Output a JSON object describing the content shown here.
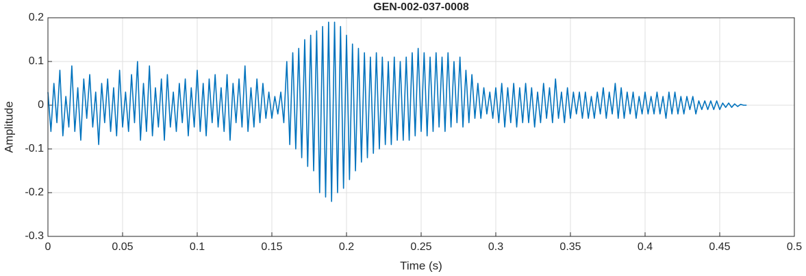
{
  "chart_data": {
    "type": "line",
    "title": "GEN-002-037-0008",
    "xlabel": "Time (s)",
    "ylabel": "Amplitude",
    "color": "#0072BD",
    "grid": true,
    "xlim": [
      0,
      0.5
    ],
    "ylim": [
      -0.3,
      0.2
    ],
    "xticks": [
      0,
      0.05,
      0.1,
      0.15,
      0.2,
      0.25,
      0.3,
      0.35,
      0.4,
      0.45,
      0.5
    ],
    "yticks": [
      -0.3,
      -0.2,
      -0.1,
      0,
      0.1,
      0.2
    ],
    "x": [
      0,
      0.002,
      0.004,
      0.006,
      0.008,
      0.01,
      0.012,
      0.014,
      0.016,
      0.018,
      0.02,
      0.022,
      0.024,
      0.026,
      0.028,
      0.03,
      0.032,
      0.034,
      0.036,
      0.038,
      0.04,
      0.042,
      0.044,
      0.046,
      0.048,
      0.05,
      0.052,
      0.054,
      0.056,
      0.058,
      0.06,
      0.062,
      0.064,
      0.066,
      0.068,
      0.07,
      0.072,
      0.074,
      0.076,
      0.078,
      0.08,
      0.082,
      0.084,
      0.086,
      0.088,
      0.09,
      0.092,
      0.094,
      0.096,
      0.098,
      0.1,
      0.102,
      0.104,
      0.106,
      0.108,
      0.11,
      0.112,
      0.114,
      0.116,
      0.118,
      0.12,
      0.122,
      0.124,
      0.126,
      0.128,
      0.13,
      0.132,
      0.134,
      0.136,
      0.138,
      0.14,
      0.142,
      0.144,
      0.146,
      0.148,
      0.15,
      0.152,
      0.154,
      0.156,
      0.158,
      0.16,
      0.162,
      0.164,
      0.166,
      0.168,
      0.17,
      0.172,
      0.174,
      0.176,
      0.178,
      0.18,
      0.182,
      0.184,
      0.186,
      0.188,
      0.19,
      0.192,
      0.194,
      0.196,
      0.198,
      0.2,
      0.202,
      0.204,
      0.206,
      0.208,
      0.21,
      0.212,
      0.214,
      0.216,
      0.218,
      0.22,
      0.222,
      0.224,
      0.226,
      0.228,
      0.23,
      0.232,
      0.234,
      0.236,
      0.238,
      0.24,
      0.242,
      0.244,
      0.246,
      0.248,
      0.25,
      0.252,
      0.254,
      0.256,
      0.258,
      0.26,
      0.262,
      0.264,
      0.266,
      0.268,
      0.27,
      0.272,
      0.274,
      0.276,
      0.278,
      0.28,
      0.282,
      0.284,
      0.286,
      0.288,
      0.29,
      0.292,
      0.294,
      0.296,
      0.298,
      0.3,
      0.302,
      0.304,
      0.306,
      0.308,
      0.31,
      0.312,
      0.314,
      0.316,
      0.318,
      0.32,
      0.322,
      0.324,
      0.326,
      0.328,
      0.33,
      0.332,
      0.334,
      0.336,
      0.338,
      0.34,
      0.342,
      0.344,
      0.346,
      0.348,
      0.35,
      0.352,
      0.354,
      0.356,
      0.358,
      0.36,
      0.362,
      0.364,
      0.366,
      0.368,
      0.37,
      0.372,
      0.374,
      0.376,
      0.378,
      0.38,
      0.382,
      0.384,
      0.386,
      0.388,
      0.39,
      0.392,
      0.394,
      0.396,
      0.398,
      0.4,
      0.402,
      0.404,
      0.406,
      0.408,
      0.41,
      0.412,
      0.414,
      0.416,
      0.418,
      0.42,
      0.422,
      0.424,
      0.426,
      0.428,
      0.43,
      0.432,
      0.434,
      0.436,
      0.438,
      0.44,
      0.442,
      0.444,
      0.446,
      0.448,
      0.45,
      0.452,
      0.454,
      0.456,
      0.458,
      0.46,
      0.462,
      0.464,
      0.466,
      0.468
    ],
    "values": [
      0.03,
      -0.06,
      0.05,
      -0.04,
      0.08,
      -0.07,
      0.02,
      -0.05,
      0.09,
      -0.06,
      0.04,
      -0.08,
      0.06,
      -0.03,
      0.07,
      -0.05,
      0.03,
      -0.09,
      0.05,
      -0.04,
      0.06,
      -0.06,
      0.04,
      -0.07,
      0.08,
      -0.05,
      0.03,
      -0.06,
      0.07,
      -0.04,
      0.1,
      -0.08,
      0.05,
      -0.06,
      0.09,
      -0.07,
      0.04,
      -0.05,
      0.06,
      -0.08,
      0.07,
      -0.05,
      0.03,
      -0.06,
      0.05,
      -0.04,
      0.06,
      -0.07,
      0.04,
      -0.05,
      0.08,
      -0.06,
      0.05,
      -0.07,
      0.06,
      -0.04,
      0.07,
      -0.05,
      0.04,
      -0.06,
      0.07,
      -0.08,
      0.05,
      -0.04,
      0.06,
      -0.05,
      0.09,
      -0.06,
      0.04,
      -0.05,
      0.06,
      -0.04,
      0.05,
      -0.03,
      0.03,
      -0.03,
      0.02,
      -0.02,
      0.03,
      -0.04,
      0.1,
      -0.09,
      0.12,
      -0.1,
      0.13,
      -0.12,
      0.15,
      -0.14,
      0.16,
      -0.15,
      0.17,
      -0.2,
      0.18,
      -0.21,
      0.19,
      -0.22,
      0.19,
      -0.2,
      0.18,
      -0.19,
      0.16,
      -0.17,
      0.14,
      -0.15,
      0.13,
      -0.13,
      0.12,
      -0.12,
      0.11,
      -0.11,
      0.12,
      -0.1,
      0.11,
      -0.09,
      0.1,
      -0.09,
      0.11,
      -0.08,
      0.1,
      -0.08,
      0.11,
      -0.08,
      0.12,
      -0.07,
      0.13,
      -0.06,
      0.12,
      -0.07,
      0.11,
      -0.06,
      0.12,
      -0.05,
      0.11,
      -0.06,
      0.12,
      -0.05,
      0.1,
      -0.04,
      0.11,
      -0.05,
      0.08,
      -0.04,
      0.07,
      -0.03,
      0.05,
      -0.03,
      0.04,
      -0.02,
      0.03,
      -0.03,
      0.04,
      -0.04,
      0.05,
      -0.05,
      0.04,
      -0.04,
      0.05,
      -0.05,
      0.04,
      -0.04,
      0.05,
      -0.04,
      0.04,
      -0.05,
      0.03,
      -0.04,
      0.05,
      -0.03,
      0.04,
      -0.04,
      0.06,
      -0.03,
      0.03,
      -0.04,
      0.04,
      -0.03,
      0.03,
      -0.02,
      0.03,
      -0.03,
      0.03,
      -0.03,
      0.02,
      -0.03,
      0.03,
      -0.02,
      0.04,
      -0.03,
      0.03,
      -0.02,
      0.05,
      -0.03,
      0.04,
      -0.03,
      0.03,
      -0.02,
      0.03,
      -0.03,
      0.02,
      -0.02,
      0.03,
      -0.02,
      0.02,
      -0.02,
      0.03,
      -0.02,
      0.02,
      -0.03,
      0.03,
      -0.02,
      0.03,
      -0.02,
      0.02,
      -0.02,
      0.02,
      -0.01,
      0.02,
      -0.02,
      0.01,
      -0.01,
      0.01,
      -0.01,
      0.01,
      -0.01,
      0.01,
      -0.01,
      0.005,
      -0.005,
      0.005,
      -0.005,
      0.003,
      -0.003,
      0.002,
      0,
      0
    ]
  }
}
